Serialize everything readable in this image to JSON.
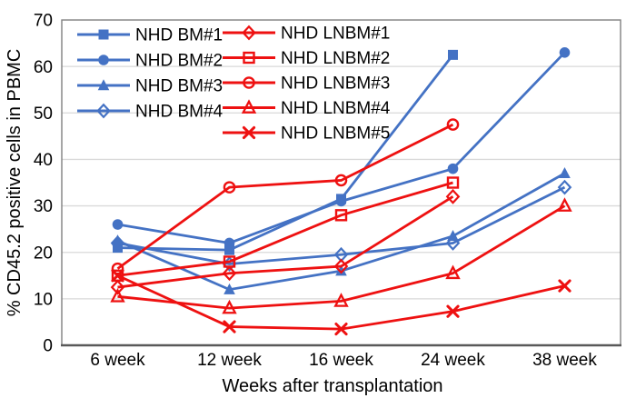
{
  "figure": {
    "type_label": "line chart figure",
    "xlabel": "Weeks after transplantation",
    "ylabel": "% CD45.2 positive cells in PBMC"
  },
  "colors": {
    "bm_blue": "#4472C4",
    "lnbm_red": "#EE1111",
    "grid": "#D9D9D9",
    "axis_border": "#808080",
    "axis_bottom": "#595959",
    "text": "#000000",
    "background": "#FFFFFF"
  },
  "chart_data": {
    "type": "line",
    "title": "",
    "xlabel": "Weeks after transplantation",
    "ylabel": "% CD45.2 positive cells in PBMC",
    "categories": [
      "6 week",
      "12 week",
      "16 week",
      "24 week",
      "38 week"
    ],
    "ylim": [
      0,
      70
    ],
    "yticks": [
      0,
      10,
      20,
      30,
      40,
      50,
      60,
      70
    ],
    "grid": "horizontal",
    "legend_position": "top-left, two columns, transparent background",
    "series": [
      {
        "name": "NHD BM#1",
        "color": "#4472C4",
        "marker": "square-filled",
        "values": [
          21,
          20.5,
          31.5,
          62.5,
          null
        ]
      },
      {
        "name": "NHD BM#2",
        "color": "#4472C4",
        "marker": "circle-filled",
        "values": [
          26,
          22,
          31,
          38,
          63
        ]
      },
      {
        "name": "NHD BM#3",
        "color": "#4472C4",
        "marker": "triangle-filled",
        "values": [
          22.5,
          12,
          16,
          23.5,
          37
        ]
      },
      {
        "name": "NHD BM#4",
        "color": "#4472C4",
        "marker": "diamond-open",
        "values": [
          22,
          17.5,
          19.5,
          22,
          34
        ]
      },
      {
        "name": "NHD LNBM#1",
        "color": "#EE1111",
        "marker": "diamond-open",
        "values": [
          12.5,
          15.5,
          17,
          32,
          null
        ]
      },
      {
        "name": "NHD LNBM#2",
        "color": "#EE1111",
        "marker": "square-open",
        "values": [
          15,
          18,
          28,
          35,
          null
        ]
      },
      {
        "name": "NHD LNBM#3",
        "color": "#EE1111",
        "marker": "circle-open",
        "values": [
          16.5,
          34,
          35.5,
          47.5,
          null
        ]
      },
      {
        "name": "NHD LNBM#4",
        "color": "#EE1111",
        "marker": "triangle-open",
        "values": [
          10.5,
          8,
          9.5,
          15.5,
          30
        ]
      },
      {
        "name": "NHD LNBM#5",
        "color": "#EE1111",
        "marker": "x-cross",
        "values": [
          15,
          4,
          3.5,
          7.3,
          12.8
        ]
      }
    ]
  }
}
